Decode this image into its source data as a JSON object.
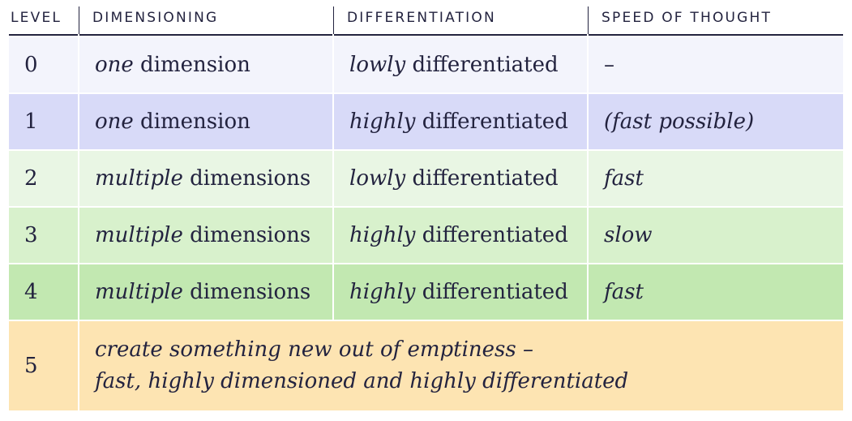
{
  "table": {
    "headers": [
      "LEVEL",
      "DIMENSIONING",
      "DIFFERENTIATION",
      "SPEED OF THOUGHT"
    ],
    "rows": [
      {
        "level": "0",
        "dim_em": "one",
        "dim_rest": " dimension",
        "diff_em": "lowly",
        "diff_rest": " differentiated",
        "speed": "–"
      },
      {
        "level": "1",
        "dim_em": "one",
        "dim_rest": " dimension",
        "diff_em": "highly",
        "diff_rest": " differentiated",
        "speed": "(fast possible)"
      },
      {
        "level": "2",
        "dim_em": "multiple",
        "dim_rest": " dimensions",
        "diff_em": "lowly",
        "diff_rest": " differentiated",
        "speed": "fast"
      },
      {
        "level": "3",
        "dim_em": "multiple",
        "dim_rest": " dimensions",
        "diff_em": "highly",
        "diff_rest": " differentiated",
        "speed": "slow"
      },
      {
        "level": "4",
        "dim_em": "multiple",
        "dim_rest": " dimensions",
        "diff_em": "highly",
        "diff_rest": " differentiated",
        "speed": "fast"
      }
    ],
    "summary_row": {
      "level": "5",
      "line1": "create something new out of emptiness –",
      "line2": "fast, highly dimensioned and highly differentiated"
    },
    "colors": {
      "text": "#23233f",
      "header_rule": "#23233f",
      "row0_bg": "#f3f4fc",
      "row1_bg": "#d8daf8",
      "row2_bg": "#e9f6e4",
      "row3_bg": "#d8f1cc",
      "row4_bg": "#c2e8b1",
      "row5_bg": "#fde4b2",
      "page_bg": "#ffffff"
    }
  }
}
